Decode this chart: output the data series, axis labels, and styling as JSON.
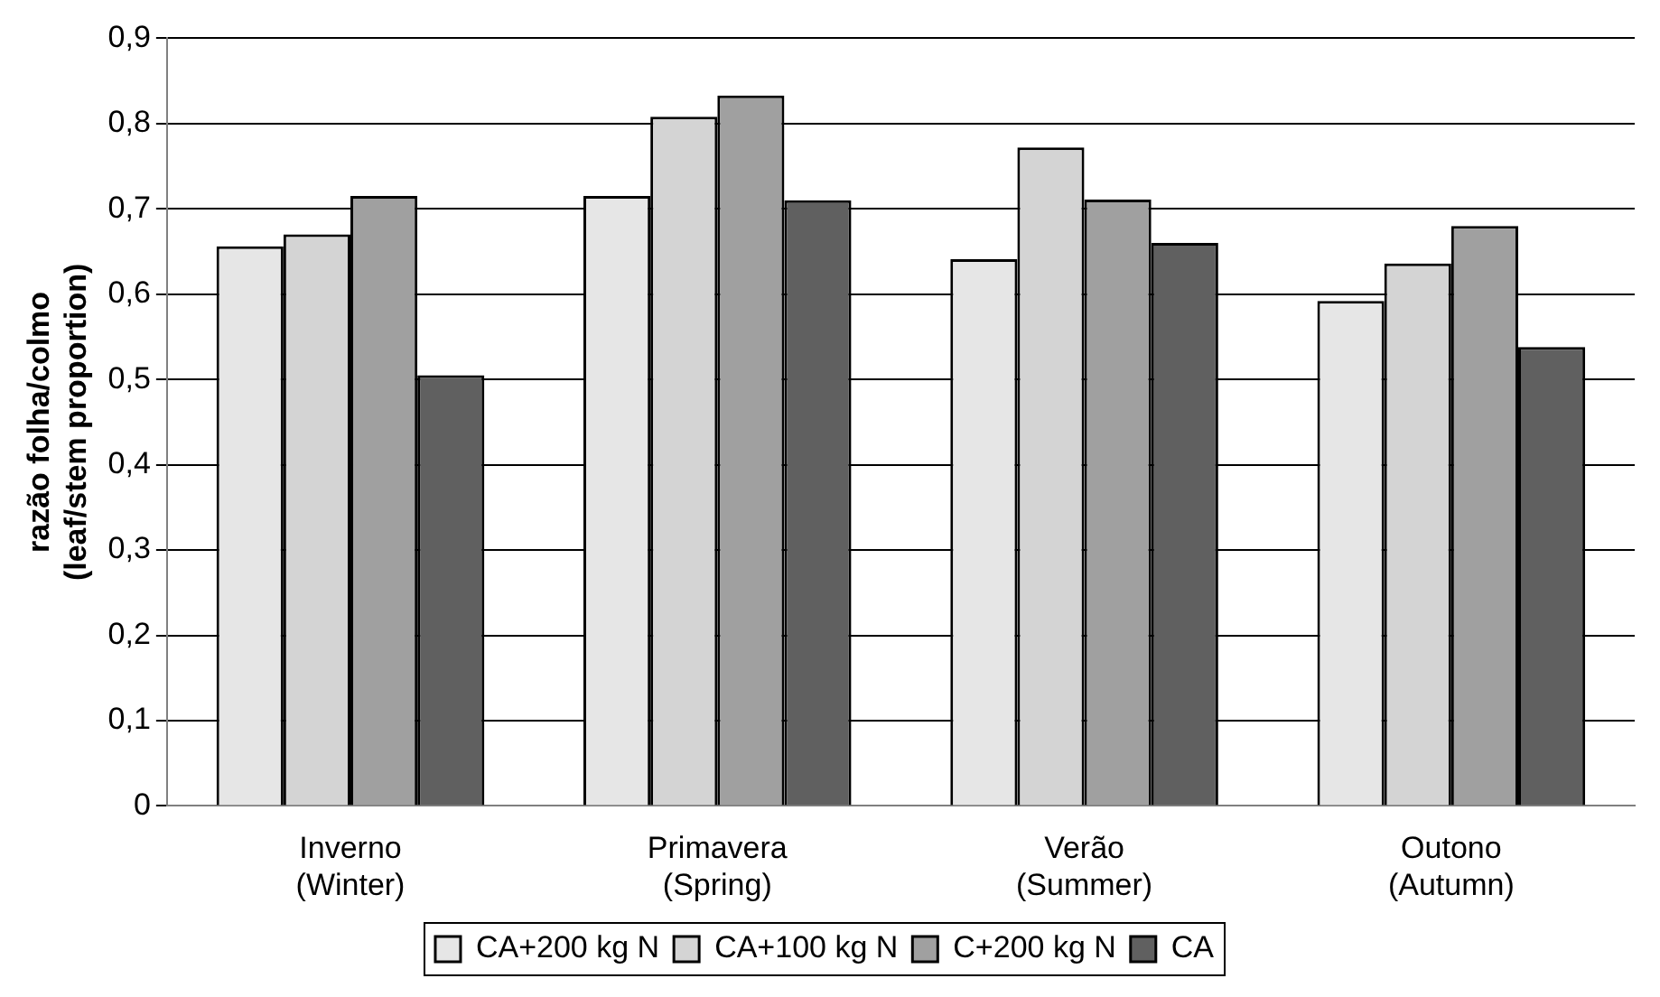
{
  "chart_data": {
    "type": "bar",
    "ylabel": "razão folha/colmo\n(leaf/stem proportion)",
    "categories": [
      "Inverno\n(Winter)",
      "Primavera\n(Spring)",
      "Verão\n(Summer)",
      "Outono\n(Autumn)"
    ],
    "series": [
      {
        "name": "CA+200 kg N",
        "color": "#e6e6e6",
        "values": [
          0.656,
          0.715,
          0.641,
          0.592
        ]
      },
      {
        "name": "CA+100 kg N",
        "color": "#d4d4d4",
        "values": [
          0.67,
          0.808,
          0.772,
          0.636
        ]
      },
      {
        "name": "C+200 kg N",
        "color": "#a0a0a0",
        "values": [
          0.715,
          0.833,
          0.711,
          0.68
        ]
      },
      {
        "name": "CA",
        "color": "#606060",
        "values": [
          0.505,
          0.71,
          0.66,
          0.538
        ]
      }
    ],
    "ylim": [
      0,
      0.9
    ],
    "yticks": [
      0,
      {
        "value": 0.1,
        "label": "0,1"
      },
      {
        "value": 0.2,
        "label": "0,2"
      },
      {
        "value": 0.3,
        "label": "0,3"
      },
      {
        "value": 0.4,
        "label": "0,4"
      },
      {
        "value": 0.5,
        "label": "0,5"
      },
      {
        "value": 0.6,
        "label": "0,6"
      },
      {
        "value": 0.7,
        "label": "0,7"
      },
      {
        "value": 0.8,
        "label": "0,8"
      },
      {
        "value": 0.9,
        "label": "0,9"
      }
    ],
    "grid": "y",
    "legend": "bottom"
  }
}
